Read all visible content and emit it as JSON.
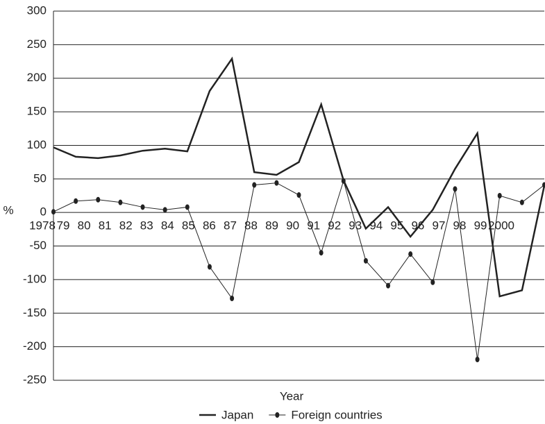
{
  "chart_data": {
    "type": "line",
    "x_label": "Year",
    "y_label": "%",
    "categories": [
      "1978",
      "79",
      "80",
      "81",
      "82",
      "83",
      "84",
      "85",
      "86",
      "87",
      "88",
      "89",
      "90",
      "91",
      "92",
      "93",
      "94",
      "95",
      "96",
      "97",
      "98",
      "99",
      "2000"
    ],
    "series": [
      {
        "name": "Japan",
        "color": "#222222",
        "line_width": 2.5,
        "markers": false,
        "values": [
          97,
          83,
          81,
          85,
          92,
          95,
          91,
          181,
          229,
          60,
          56,
          75,
          161,
          48,
          -24,
          8,
          -36,
          4,
          65,
          118,
          -125,
          -116,
          40
        ]
      },
      {
        "name": "Foreign countries",
        "color": "#222222",
        "line_width": 1,
        "markers": true,
        "values": [
          1,
          17,
          19,
          15,
          8,
          4,
          8,
          -81,
          -128,
          41,
          44,
          26,
          -60,
          47,
          -72,
          -109,
          -62,
          -104,
          35,
          -219,
          25,
          15,
          41
        ]
      }
    ],
    "ylim": [
      -250,
      300
    ],
    "yticks": [
      -250,
      -200,
      -150,
      -100,
      -50,
      0,
      50,
      100,
      150,
      200,
      250,
      300
    ],
    "grid": true
  }
}
